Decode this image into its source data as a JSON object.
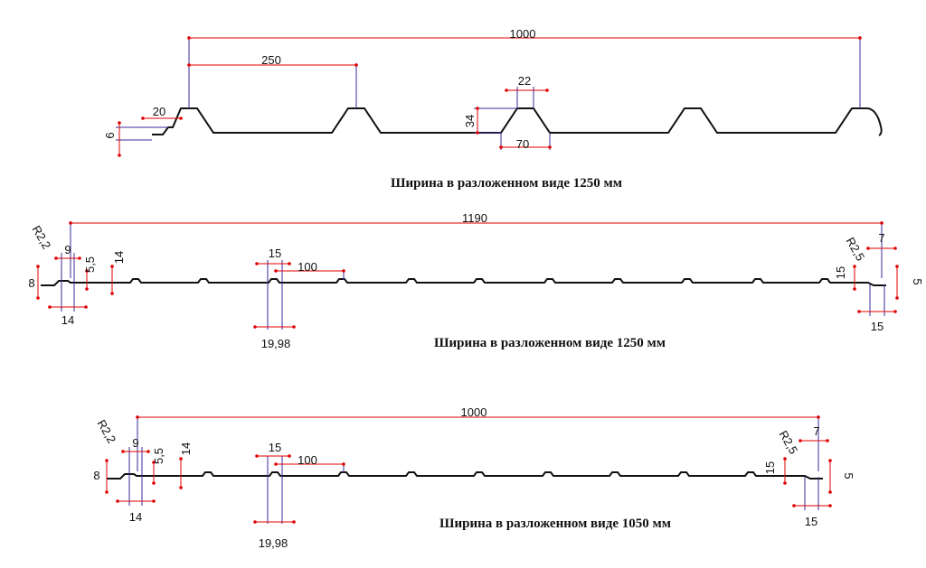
{
  "profiles": [
    {
      "caption": "Ширина в разложенном виде 1250 мм",
      "dimensions": [
        "1000",
        "250",
        "20",
        "6",
        "22",
        "34",
        "70"
      ]
    },
    {
      "caption": "Ширина в разложенном виде 1250 мм",
      "dimensions": [
        "1190",
        "R2,2",
        "9",
        "5,5",
        "14",
        "8",
        "14",
        "15",
        "100",
        "19,98",
        "R2,5",
        "7",
        "15",
        "5",
        "15"
      ]
    },
    {
      "caption": "Ширина в разложенном виде 1050 мм",
      "dimensions": [
        "1000",
        "R2,2",
        "9",
        "5,5",
        "14",
        "8",
        "14",
        "15",
        "100",
        "19,98",
        "R2,5",
        "7",
        "15",
        "5",
        "15"
      ]
    }
  ]
}
